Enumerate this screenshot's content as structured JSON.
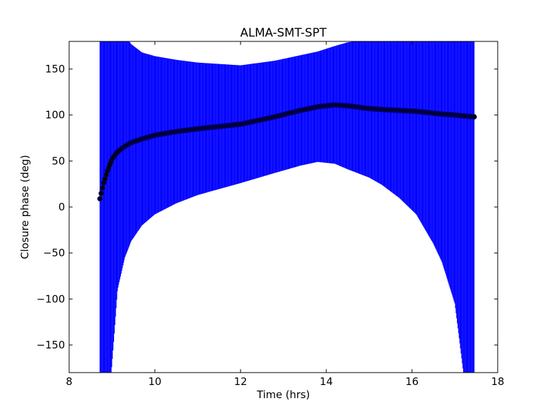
{
  "chart_data": {
    "type": "scatter",
    "title": "ALMA-SMT-SPT",
    "xlabel": "Time (hrs)",
    "ylabel": "Closure phase (deg)",
    "xlim": [
      8,
      18
    ],
    "ylim": [
      -180,
      180
    ],
    "xticks": [
      8,
      10,
      12,
      14,
      16,
      18
    ],
    "xtick_labels": [
      "8",
      "10",
      "12",
      "14",
      "16",
      "18"
    ],
    "yticks": [
      -150,
      -100,
      -50,
      0,
      50,
      100,
      150
    ],
    "ytick_labels": [
      "−150",
      "−100",
      "−50",
      "0",
      "50",
      "100",
      "150"
    ],
    "grid": false,
    "colors": {
      "errorbar": "#0000ff",
      "marker": "#000000",
      "marker_edge": "#000080"
    },
    "series": [
      {
        "name": "closure phase",
        "x": [
          8.72,
          8.8,
          8.9,
          9.0,
          9.13,
          9.3,
          9.45,
          9.7,
          10,
          10.5,
          11,
          12,
          12.8,
          13.4,
          13.8,
          14.2,
          14.5,
          15,
          15.3,
          15.7,
          16.1,
          16.5,
          16.7,
          17.0,
          17.2,
          17.45
        ],
        "y": [
          9,
          25,
          40,
          52,
          60,
          66,
          70,
          74,
          78,
          82,
          85,
          90,
          98,
          105,
          109,
          111,
          110,
          107,
          106,
          105,
          104,
          102,
          101,
          100,
          99,
          98
        ],
        "err": [
          309,
          305,
          270,
          224,
          150,
          121,
          107,
          94,
          86,
          78,
          72,
          64,
          61,
          60,
          60,
          64,
          69,
          75,
          82,
          95,
          112,
          142,
          161,
          205,
          279,
          358
        ]
      }
    ]
  }
}
